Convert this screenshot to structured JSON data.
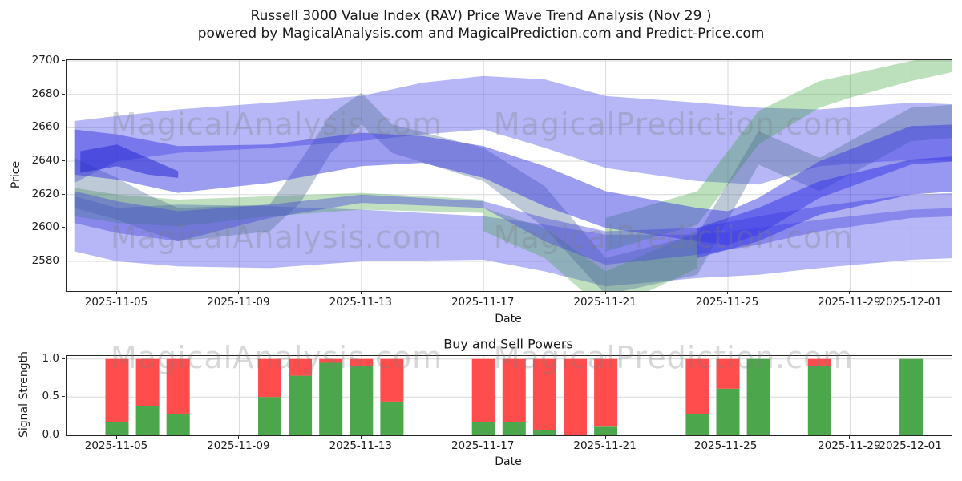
{
  "figure": {
    "title": "Russell 3000 Value Index (RAV) Price Wave Trend Analysis (Nov 29 )",
    "subtitle": "powered by MagicalAnalysis.com and MagicalPrediction.com and Predict-Price.com",
    "watermarks": {
      "left": "MagicalAnalysis.com",
      "right": "MagicalPrediction.com"
    }
  },
  "colors": {
    "buy_green": "#4CA64C",
    "sell_red": "#FF4C4C",
    "band_blue_light": "#6060ee",
    "band_blue_mid": "#3a3ae2",
    "band_blue_mid2": "#4646dd",
    "band_blue_bright": "#3232e8",
    "band_blue_dark": "#2020cf",
    "band_green": "#3aa03a",
    "band_slate": "#49688c",
    "grid": "#d9d9d9",
    "spine": "#262626",
    "text": "#1a1a1a"
  },
  "chart_data": [
    {
      "type": "area",
      "name": "price-wave-trend",
      "ylabel": "Price",
      "xlabel": "Date",
      "grid": true,
      "ylim": [
        2562,
        2700.5
      ],
      "yticks": [
        2580,
        2600,
        2620,
        2640,
        2660,
        2680,
        2700
      ],
      "xtick_labels": [
        "2025-11-05",
        "2025-11-09",
        "2025-11-13",
        "2025-11-17",
        "2025-11-21",
        "2025-11-25",
        "2025-11-29",
        "2025-12-01"
      ],
      "xtick_days": [
        2,
        6,
        10,
        14,
        18,
        22,
        26,
        28
      ],
      "day_zero_date": "2025-11-03",
      "bands": [
        {
          "name": "forecast-envelope-lower",
          "color": "#6060ee",
          "opacity": 0.45,
          "days": [
            0.6,
            2,
            4,
            7,
            10,
            14,
            16,
            18,
            21,
            23,
            25,
            28,
            29.5
          ],
          "top": [
            2619,
            2612,
            2614,
            2613,
            2611,
            2607,
            2602,
            2596,
            2596,
            2600,
            2605,
            2611,
            2612
          ],
          "bottom": [
            2586,
            2580,
            2577,
            2576,
            2580,
            2581,
            2574,
            2565,
            2570,
            2572,
            2576,
            2581,
            2582
          ]
        },
        {
          "name": "forecast-envelope-upper",
          "color": "#6060ee",
          "opacity": 0.45,
          "days": [
            0.6,
            2,
            4,
            7,
            10,
            12,
            14,
            16,
            18,
            21,
            23,
            25,
            28,
            29.5
          ],
          "top": [
            2664,
            2667,
            2671,
            2675,
            2679,
            2687,
            2691,
            2689,
            2679,
            2675,
            2672,
            2671,
            2675,
            2674
          ],
          "bottom": [
            2627,
            2640,
            2645,
            2648,
            2652,
            2656,
            2659,
            2648,
            2636,
            2628,
            2626,
            2637,
            2641,
            2640
          ]
        },
        {
          "name": "green-wave-left",
          "color": "#3aa03a",
          "opacity": 0.32,
          "days": [
            0.6,
            2,
            4,
            7,
            10,
            14
          ],
          "top": [
            2624,
            2620,
            2617,
            2619,
            2621,
            2617
          ],
          "bottom": [
            2607,
            2603,
            2601,
            2607,
            2611,
            2609
          ]
        },
        {
          "name": "green-wave-dip",
          "color": "#3aa03a",
          "opacity": 0.32,
          "days": [
            14,
            16,
            18,
            21
          ],
          "top": [
            2612,
            2600,
            2574,
            2598
          ],
          "bottom": [
            2598,
            2582,
            2550,
            2576
          ]
        },
        {
          "name": "green-wave-rise",
          "color": "#3aa03a",
          "opacity": 0.34,
          "days": [
            18,
            21,
            23,
            25,
            26,
            28,
            29.5
          ],
          "top": [
            2606,
            2622,
            2670,
            2688,
            2692,
            2700,
            2706
          ],
          "bottom": [
            2586,
            2602,
            2650,
            2672,
            2678,
            2688,
            2694
          ]
        },
        {
          "name": "slate-wave",
          "color": "#49688c",
          "opacity": 0.36,
          "days": [
            0.6,
            2,
            3,
            4,
            7,
            8,
            9,
            10,
            11,
            14,
            16,
            18,
            21,
            23,
            25,
            28,
            29.5
          ],
          "top": [
            2642,
            2630,
            2620,
            2612,
            2614,
            2640,
            2668,
            2681,
            2662,
            2648,
            2625,
            2582,
            2596,
            2658,
            2642,
            2672,
            2674
          ],
          "bottom": [
            2612,
            2605,
            2598,
            2592,
            2598,
            2615,
            2645,
            2662,
            2645,
            2628,
            2600,
            2560,
            2572,
            2638,
            2622,
            2652,
            2654
          ]
        },
        {
          "name": "mid-band-lower",
          "color": "#4646dd",
          "opacity": 0.42,
          "days": [
            0.6,
            2,
            4,
            7,
            10,
            14,
            16,
            18,
            21,
            23,
            25,
            28,
            29.5
          ],
          "top": [
            2622,
            2616,
            2610,
            2614,
            2620,
            2616,
            2606,
            2598,
            2600,
            2607,
            2613,
            2620,
            2621
          ],
          "bottom": [
            2603,
            2597,
            2592,
            2606,
            2615,
            2612,
            2592,
            2578,
            2584,
            2590,
            2598,
            2606,
            2607
          ]
        },
        {
          "name": "mid-band-upper",
          "color": "#3a3ae2",
          "opacity": 0.5,
          "days": [
            0.6,
            2,
            4,
            7,
            10,
            12,
            14,
            16,
            18,
            21,
            22,
            23,
            25,
            28,
            29.5
          ],
          "top": [
            2659,
            2656,
            2649,
            2650,
            2657,
            2655,
            2649,
            2637,
            2622,
            2612,
            2610,
            2618,
            2640,
            2661,
            2662
          ],
          "bottom": [
            2632,
            2629,
            2621,
            2627,
            2637,
            2639,
            2630,
            2613,
            2600,
            2592,
            2590,
            2596,
            2618,
            2638,
            2640
          ]
        },
        {
          "name": "bright-band-right",
          "color": "#3232e8",
          "opacity": 0.5,
          "days": [
            21,
            23,
            25,
            28,
            29.5
          ],
          "top": [
            2600,
            2612,
            2628,
            2641,
            2643
          ],
          "bottom": [
            2582,
            2592,
            2608,
            2620,
            2622
          ]
        },
        {
          "name": "dark-wedge-left",
          "color": "#2020cf",
          "opacity": 0.5,
          "days": [
            0.8,
            2,
            3,
            4
          ],
          "top": [
            2646,
            2650,
            2642,
            2634
          ],
          "bottom": [
            2633,
            2637,
            2632,
            2630
          ]
        }
      ]
    },
    {
      "type": "bar",
      "name": "buy-sell-powers",
      "title": "Buy and Sell Powers",
      "ylabel": "Signal Strength",
      "xlabel": "Date",
      "grid": true,
      "ylim": [
        0,
        1.04
      ],
      "yticks": [
        0.0,
        0.5,
        1.0
      ],
      "ytick_labels": [
        "0.0",
        "0.5",
        "1.0"
      ],
      "xtick_labels": [
        "2025-11-05",
        "2025-11-09",
        "2025-11-13",
        "2025-11-17",
        "2025-11-21",
        "2025-11-25",
        "2025-11-29",
        "2025-12-01"
      ],
      "xtick_days": [
        2,
        6,
        10,
        14,
        18,
        21.95,
        26,
        28
      ],
      "categories": [
        "2025-11-05",
        "2025-11-06",
        "2025-11-07",
        "2025-11-10",
        "2025-11-11",
        "2025-11-12",
        "2025-11-13",
        "2025-11-14",
        "2025-11-17",
        "2025-11-18",
        "2025-11-19",
        "2025-11-20",
        "2025-11-21",
        "2025-11-24",
        "2025-11-25",
        "2025-11-26",
        "2025-11-28",
        "2025-12-01"
      ],
      "bar_days": [
        2,
        3,
        4,
        7,
        8,
        9,
        10,
        11,
        14,
        15,
        16,
        17,
        18,
        21,
        22,
        23,
        25,
        28
      ],
      "series": [
        {
          "name": "Buy",
          "color": "#4CA64C",
          "values": [
            0.17,
            0.38,
            0.27,
            0.5,
            0.78,
            0.95,
            0.91,
            0.44,
            0.17,
            0.17,
            0.06,
            0.0,
            0.11,
            0.27,
            0.61,
            1.0,
            0.91,
            1.0
          ]
        },
        {
          "name": "Sell",
          "color": "#FF4C4C",
          "values": [
            0.83,
            0.62,
            0.73,
            0.5,
            0.22,
            0.05,
            0.09,
            0.56,
            0.83,
            0.83,
            0.94,
            1.0,
            0.89,
            0.73,
            0.39,
            0.0,
            0.09,
            0.0
          ]
        }
      ]
    }
  ]
}
